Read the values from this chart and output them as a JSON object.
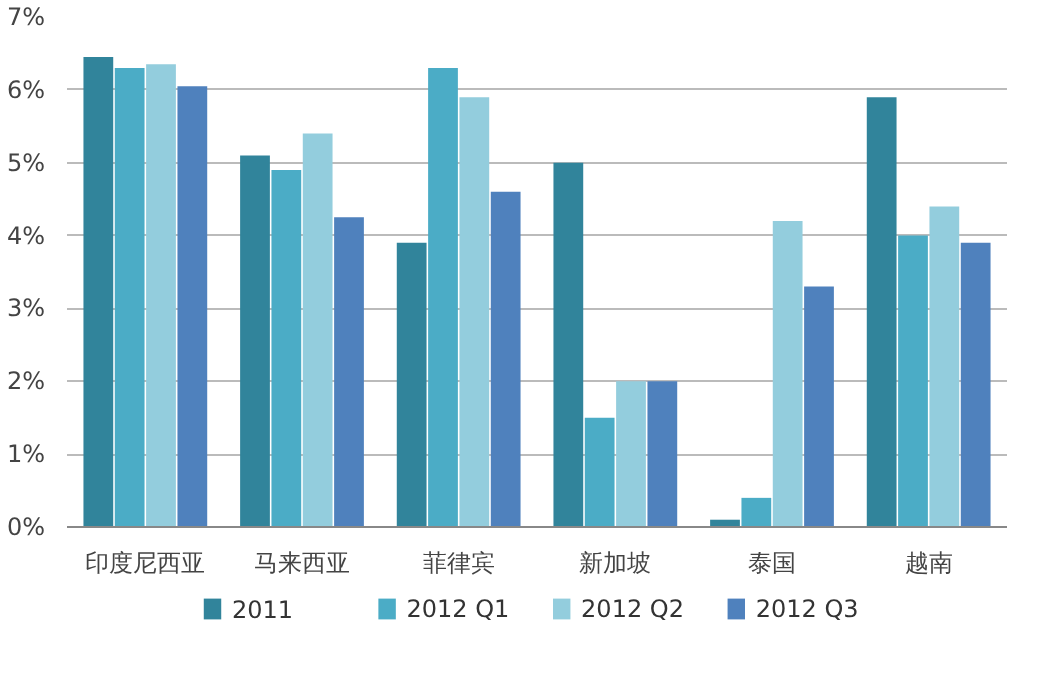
{
  "chart_data": {
    "type": "bar",
    "categories": [
      "印度尼西亚",
      "马来西亚",
      "菲律宾",
      "新加坡",
      "泰国",
      "越南"
    ],
    "series": [
      {
        "name": "2011",
        "color": "#31849b",
        "values": [
          6.45,
          5.1,
          3.9,
          5.0,
          0.1,
          5.9
        ]
      },
      {
        "name": "2012 Q1",
        "color": "#4bacc6",
        "values": [
          6.3,
          4.9,
          6.3,
          1.5,
          0.4,
          4.0
        ]
      },
      {
        "name": "2012 Q2",
        "color": "#93cddd",
        "values": [
          6.35,
          5.4,
          5.9,
          2.0,
          4.2,
          4.4
        ]
      },
      {
        "name": "2012 Q3",
        "color": "#4f81bd",
        "values": [
          6.05,
          4.25,
          4.6,
          2.0,
          3.3,
          3.9
        ]
      }
    ],
    "ylim": [
      0,
      7
    ],
    "yticks": [
      {
        "value": 0,
        "label": "0%"
      },
      {
        "value": 1,
        "label": "1%"
      },
      {
        "value": 2,
        "label": "2%"
      },
      {
        "value": 3,
        "label": "3%"
      },
      {
        "value": 4,
        "label": "4%"
      },
      {
        "value": 5,
        "label": "5%"
      },
      {
        "value": 6,
        "label": "6%"
      },
      {
        "value": 7,
        "label": "7%"
      }
    ],
    "grid": "y",
    "legend": "bottom"
  }
}
